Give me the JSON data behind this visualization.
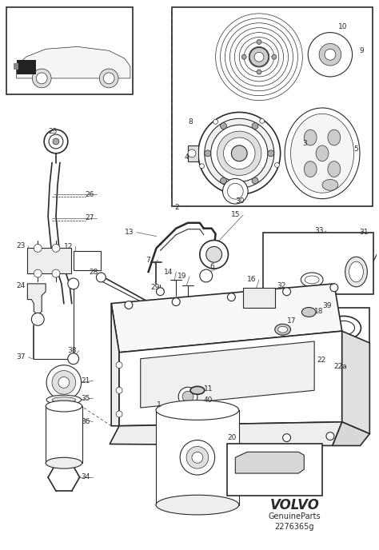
{
  "bg_color": "#ffffff",
  "line_color": "#2a2a2a",
  "fig_width": 4.74,
  "fig_height": 6.88,
  "dpi": 100,
  "volvo_text": "VOLVO",
  "genuine_text": "GenuineParts",
  "part_code": "2276365g"
}
